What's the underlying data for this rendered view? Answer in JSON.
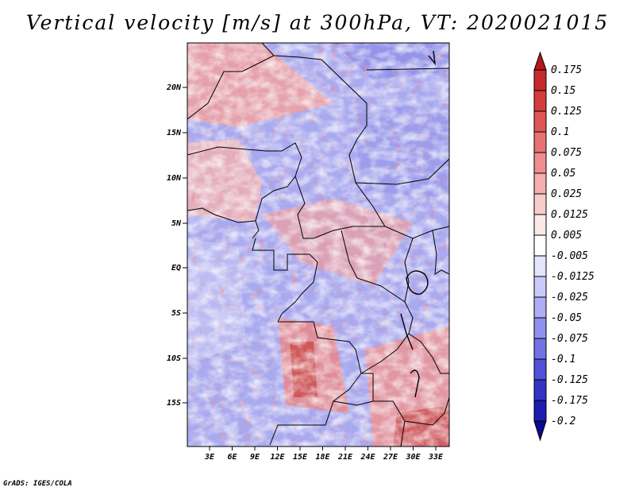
{
  "title": "Vertical velocity [m/s] at 300hPa, VT: 2020021015",
  "credit": "GrADS: IGES/COLA",
  "map": {
    "lon_labels": [
      "3E",
      "6E",
      "9E",
      "12E",
      "15E",
      "18E",
      "21E",
      "24E",
      "27E",
      "30E",
      "33E"
    ],
    "lat_labels": [
      "20N",
      "15N",
      "10N",
      "5N",
      "EQ",
      "5S",
      "10S",
      "15S"
    ]
  },
  "colorbar": {
    "labels": [
      "0.175",
      "0.15",
      "0.125",
      "0.1",
      "0.075",
      "0.05",
      "0.025",
      "0.0125",
      "0.005",
      "-0.005",
      "-0.0125",
      "-0.025",
      "-0.05",
      "-0.075",
      "-0.1",
      "-0.125",
      "-0.175",
      "-0.2"
    ],
    "colors": [
      "#b2181b",
      "#c62a2c",
      "#d63c3c",
      "#e05656",
      "#e87272",
      "#ef8e8e",
      "#f5aeae",
      "#f9cccc",
      "#fde8e8",
      "#ffffff",
      "#e4e4fd",
      "#cacaf9",
      "#aeaef4",
      "#9090ee",
      "#7272e6",
      "#5050d8",
      "#3232c4",
      "#1c1cb0",
      "#0a0a92"
    ]
  },
  "legend_colors": {
    "positive": "#d63c3c",
    "negative": "#5050d8",
    "neutral": "#ffffff"
  }
}
